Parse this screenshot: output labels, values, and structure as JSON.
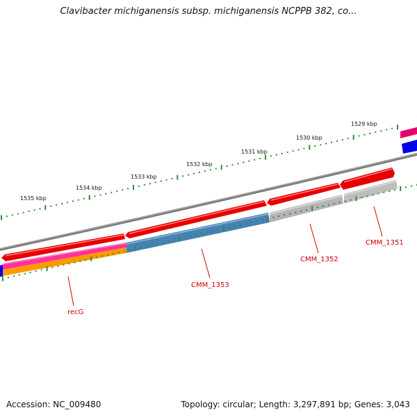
{
  "title": "Clavibacter michiganensis subsp. michiganensis NCPPB 382, co...",
  "footer": {
    "accession": "Accession: NC_009480",
    "stats": "Topology: circular; Length: 3,297,891 bp; Genes: 3,043"
  },
  "ruler": {
    "labels": [
      "1535 kbp",
      "1534 kbp",
      "1533 kbp",
      "1532 kbp",
      "1531 kbp",
      "1530 kbp",
      "1529 kbp"
    ]
  },
  "gene_labels": [
    "recG",
    "CMM_1353",
    "CMM_1352",
    "CMM_1351"
  ],
  "colors": {
    "backbone": "#808080",
    "forward_gene": "#e60000",
    "reverse_gene": "#ff3399",
    "cds_blue": "#4682b4",
    "cds_gray": "#b4b4b4",
    "cds_orange": "#ff9900",
    "edge_blue": "#0000ee",
    "tick": "#2e8b2e",
    "label": "#cc0000"
  }
}
